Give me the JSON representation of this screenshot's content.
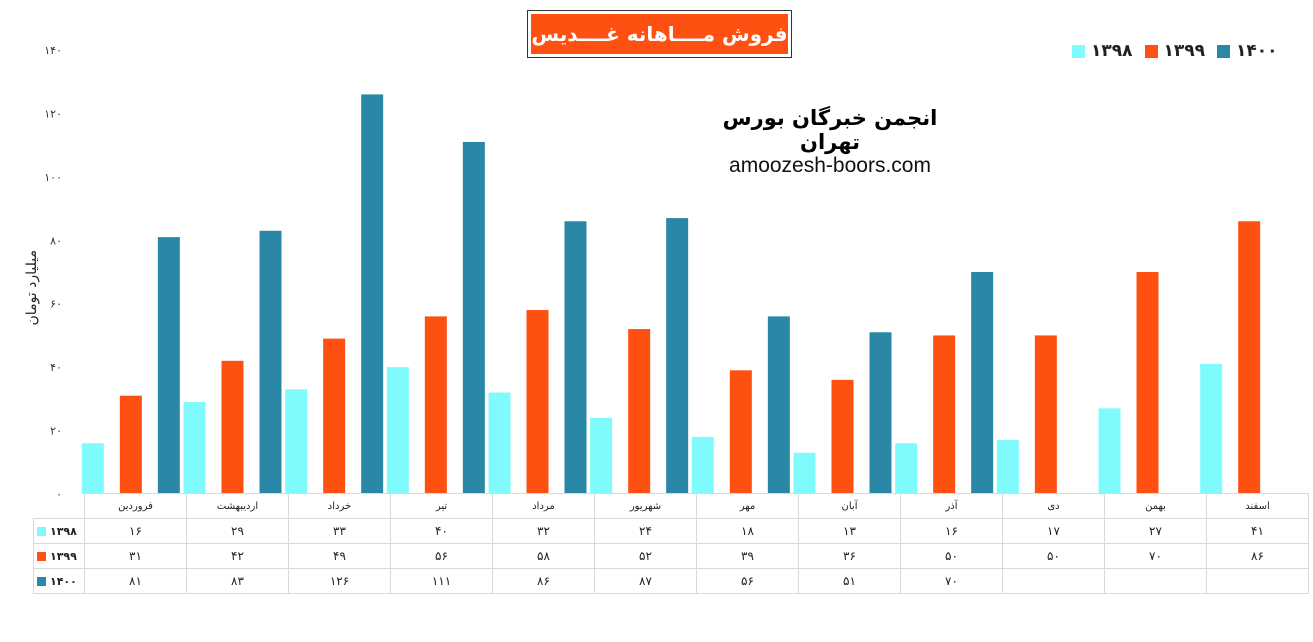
{
  "title": "فروش مــــاهانه غــــدیس",
  "org": "انجمن خبرگان بورس تهران",
  "website": "amoozesh-boors.com",
  "chart_data": {
    "type": "bar",
    "title": "فروش مــــاهانه غــــدیس",
    "ylabel": "میلیارد تومان",
    "ylim": [
      0,
      140
    ],
    "yticks": [
      "۰",
      "۲۰",
      "۴۰",
      "۶۰",
      "۸۰",
      "۱۰۰",
      "۱۲۰",
      "۱۴۰"
    ],
    "categories": [
      "فروردین",
      "اردیبهشت",
      "خرداد",
      "تیر",
      "مرداد",
      "شهریور",
      "مهر",
      "آبان",
      "آذر",
      "دی",
      "بهمن",
      "اسفند"
    ],
    "series": [
      {
        "name": "۱۳۹۸",
        "color": "#80fbfd",
        "values": [
          16,
          29,
          33,
          40,
          32,
          24,
          18,
          13,
          16,
          17,
          27,
          41
        ],
        "labels": [
          "۱۶",
          "۲۹",
          "۳۳",
          "۴۰",
          "۳۲",
          "۲۴",
          "۱۸",
          "۱۳",
          "۱۶",
          "۱۷",
          "۲۷",
          "۴۱"
        ]
      },
      {
        "name": "۱۳۹۹",
        "color": "#fe5011",
        "values": [
          31,
          42,
          49,
          56,
          58,
          52,
          39,
          36,
          50,
          50,
          70,
          86
        ],
        "labels": [
          "۳۱",
          "۴۲",
          "۴۹",
          "۵۶",
          "۵۸",
          "۵۲",
          "۳۹",
          "۳۶",
          "۵۰",
          "۵۰",
          "۷۰",
          "۸۶"
        ]
      },
      {
        "name": "۱۴۰۰",
        "color": "#2a87a6",
        "values": [
          81,
          83,
          126,
          111,
          86,
          87,
          56,
          51,
          70,
          null,
          null,
          null
        ],
        "labels": [
          "۸۱",
          "۸۳",
          "۱۲۶",
          "۱۱۱",
          "۸۶",
          "۸۷",
          "۵۶",
          "۵۱",
          "۷۰",
          "",
          "",
          ""
        ]
      }
    ],
    "legend_position": "top-right",
    "grid": false
  }
}
